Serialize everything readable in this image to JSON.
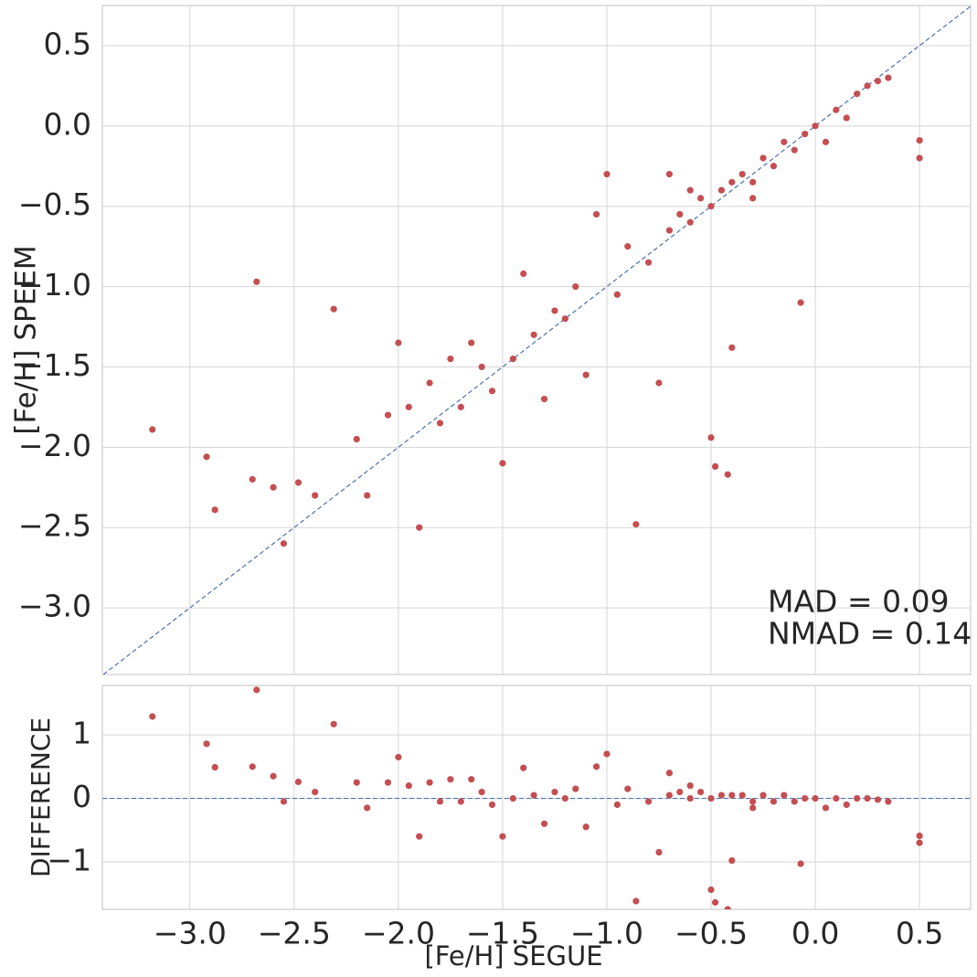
{
  "chart_data": [
    {
      "type": "scatter",
      "y_label": "[Fe/H]  SPEEM",
      "color": "#c44e52",
      "line_color": "#4c72b0",
      "diagonal": true,
      "grid": true,
      "annotations": [
        "MAD = 0.09",
        "NMAD = 0.14"
      ],
      "xlim": [
        -3.42,
        0.745
      ],
      "ylim": [
        -3.415,
        0.75
      ],
      "xticks": [
        -3,
        -2.5,
        -2,
        -1.5,
        -1,
        -0.5,
        0,
        0.5
      ],
      "yticks": [
        {
          "value": 0.5,
          "label": "0.5"
        },
        {
          "value": 0,
          "label": "0.0"
        },
        {
          "value": -0.5,
          "label": "−0.5"
        },
        {
          "value": -1,
          "label": "−1.0"
        },
        {
          "value": -1.5,
          "label": "−1.5"
        },
        {
          "value": -2,
          "label": "−2.0"
        },
        {
          "value": -2.5,
          "label": "−2.5"
        },
        {
          "value": -3,
          "label": "−3.0"
        }
      ],
      "x": [
        -3.18,
        -2.92,
        -2.88,
        -2.7,
        -2.68,
        -2.6,
        -2.55,
        -2.48,
        -2.4,
        -2.31,
        -2.2,
        -2.15,
        -2.05,
        -2.0,
        -1.95,
        -1.9,
        -1.85,
        -1.8,
        -1.75,
        -1.7,
        -1.6,
        -1.55,
        -1.5,
        -1.45,
        -1.4,
        -1.35,
        -1.3,
        -1.2,
        -1.15,
        -1.1,
        -1.05,
        -1.0,
        -0.95,
        -0.9,
        -0.86,
        -0.8,
        -0.75,
        -0.7,
        -0.65,
        -0.6,
        -0.55,
        -0.5,
        -0.5,
        -0.48,
        -0.45,
        -0.42,
        -0.4,
        -0.4,
        -0.35,
        -0.3,
        -0.25,
        -0.2,
        -0.15,
        -0.1,
        -0.07,
        -0.05,
        0,
        0.05,
        0.1,
        0.15,
        0.2,
        0.25,
        0.3,
        0.35,
        0.5,
        0.5,
        -0.3,
        -0.6,
        -0.7,
        -1.25,
        -1.65
      ],
      "values": [
        -1.89,
        -2.06,
        -2.39,
        -2.2,
        -0.97,
        -2.25,
        -2.6,
        -2.22,
        -2.3,
        -1.14,
        -1.95,
        -2.3,
        -1.8,
        -1.35,
        -1.75,
        -2.5,
        -1.6,
        -1.85,
        -1.45,
        -1.75,
        -1.5,
        -1.65,
        -2.1,
        -1.45,
        -0.92,
        -1.3,
        -1.7,
        -1.2,
        -1.0,
        -1.55,
        -0.55,
        -0.3,
        -1.05,
        -0.75,
        -2.48,
        -0.85,
        -1.6,
        -0.65,
        -0.55,
        -0.6,
        -0.45,
        -1.94,
        -0.5,
        -2.12,
        -0.4,
        -2.17,
        -0.35,
        -1.38,
        -0.3,
        -0.45,
        -0.2,
        -0.25,
        -0.1,
        -0.15,
        -1.1,
        -0.05,
        0,
        -0.1,
        0.1,
        0.05,
        0.2,
        0.25,
        0.28,
        0.3,
        -0.09,
        -0.2,
        -0.35,
        -0.4,
        -0.3,
        -1.15,
        -1.35
      ]
    },
    {
      "type": "scatter",
      "x_label": "[Fe/H]  SEGUE",
      "y_label": "DIFFERENCE",
      "color": "#c44e52",
      "line_color": "#4c72b0",
      "reference_line": 0,
      "grid": true,
      "xlim": [
        -3.42,
        0.745
      ],
      "ylim": [
        -1.75,
        1.78
      ],
      "xticks": [
        {
          "value": -3,
          "label": "−3.0"
        },
        {
          "value": -2.5,
          "label": "−2.5"
        },
        {
          "value": -2,
          "label": "−2.0"
        },
        {
          "value": -1.5,
          "label": "−1.5"
        },
        {
          "value": -1,
          "label": "−1.0"
        },
        {
          "value": -0.5,
          "label": "−0.5"
        },
        {
          "value": 0,
          "label": "0.0"
        },
        {
          "value": 0.5,
          "label": "0.5"
        }
      ],
      "yticks": [
        1,
        0,
        {
          "value": -1,
          "label": "−1"
        }
      ],
      "x": [
        -3.18,
        -2.92,
        -2.88,
        -2.7,
        -2.68,
        -2.6,
        -2.55,
        -2.48,
        -2.4,
        -2.31,
        -2.2,
        -2.15,
        -2.05,
        -2.0,
        -1.95,
        -1.9,
        -1.85,
        -1.8,
        -1.75,
        -1.7,
        -1.6,
        -1.55,
        -1.5,
        -1.45,
        -1.4,
        -1.35,
        -1.3,
        -1.2,
        -1.15,
        -1.1,
        -1.05,
        -1.0,
        -0.95,
        -0.9,
        -0.86,
        -0.8,
        -0.75,
        -0.7,
        -0.65,
        -0.6,
        -0.55,
        -0.5,
        -0.5,
        -0.48,
        -0.45,
        -0.42,
        -0.4,
        -0.4,
        -0.35,
        -0.3,
        -0.25,
        -0.2,
        -0.15,
        -0.1,
        -0.07,
        -0.05,
        0,
        0.05,
        0.1,
        0.15,
        0.2,
        0.25,
        0.3,
        0.35,
        0.5,
        0.5,
        -0.3,
        -0.6,
        -0.7,
        -1.25,
        -1.65
      ],
      "values": [
        1.29,
        0.86,
        0.49,
        0.5,
        1.71,
        0.35,
        -0.05,
        0.26,
        0.1,
        1.17,
        0.25,
        -0.15,
        0.25,
        0.65,
        0.2,
        -0.6,
        0.25,
        -0.05,
        0.3,
        -0.05,
        0.1,
        -0.1,
        -0.6,
        0,
        0.48,
        0.05,
        -0.4,
        0,
        0.15,
        -0.45,
        0.5,
        0.7,
        -0.1,
        0.15,
        -1.62,
        -0.05,
        -0.85,
        0.05,
        0.1,
        0,
        0.1,
        -1.44,
        0,
        -1.64,
        0.05,
        -1.75,
        0.05,
        -0.98,
        0.05,
        -0.15,
        0.05,
        -0.05,
        0.05,
        -0.05,
        -1.03,
        0,
        0,
        -0.15,
        0,
        -0.1,
        0,
        0,
        -0.02,
        -0.05,
        -0.59,
        -0.7,
        -0.05,
        0.2,
        0.4,
        0.1,
        0.3
      ]
    }
  ]
}
